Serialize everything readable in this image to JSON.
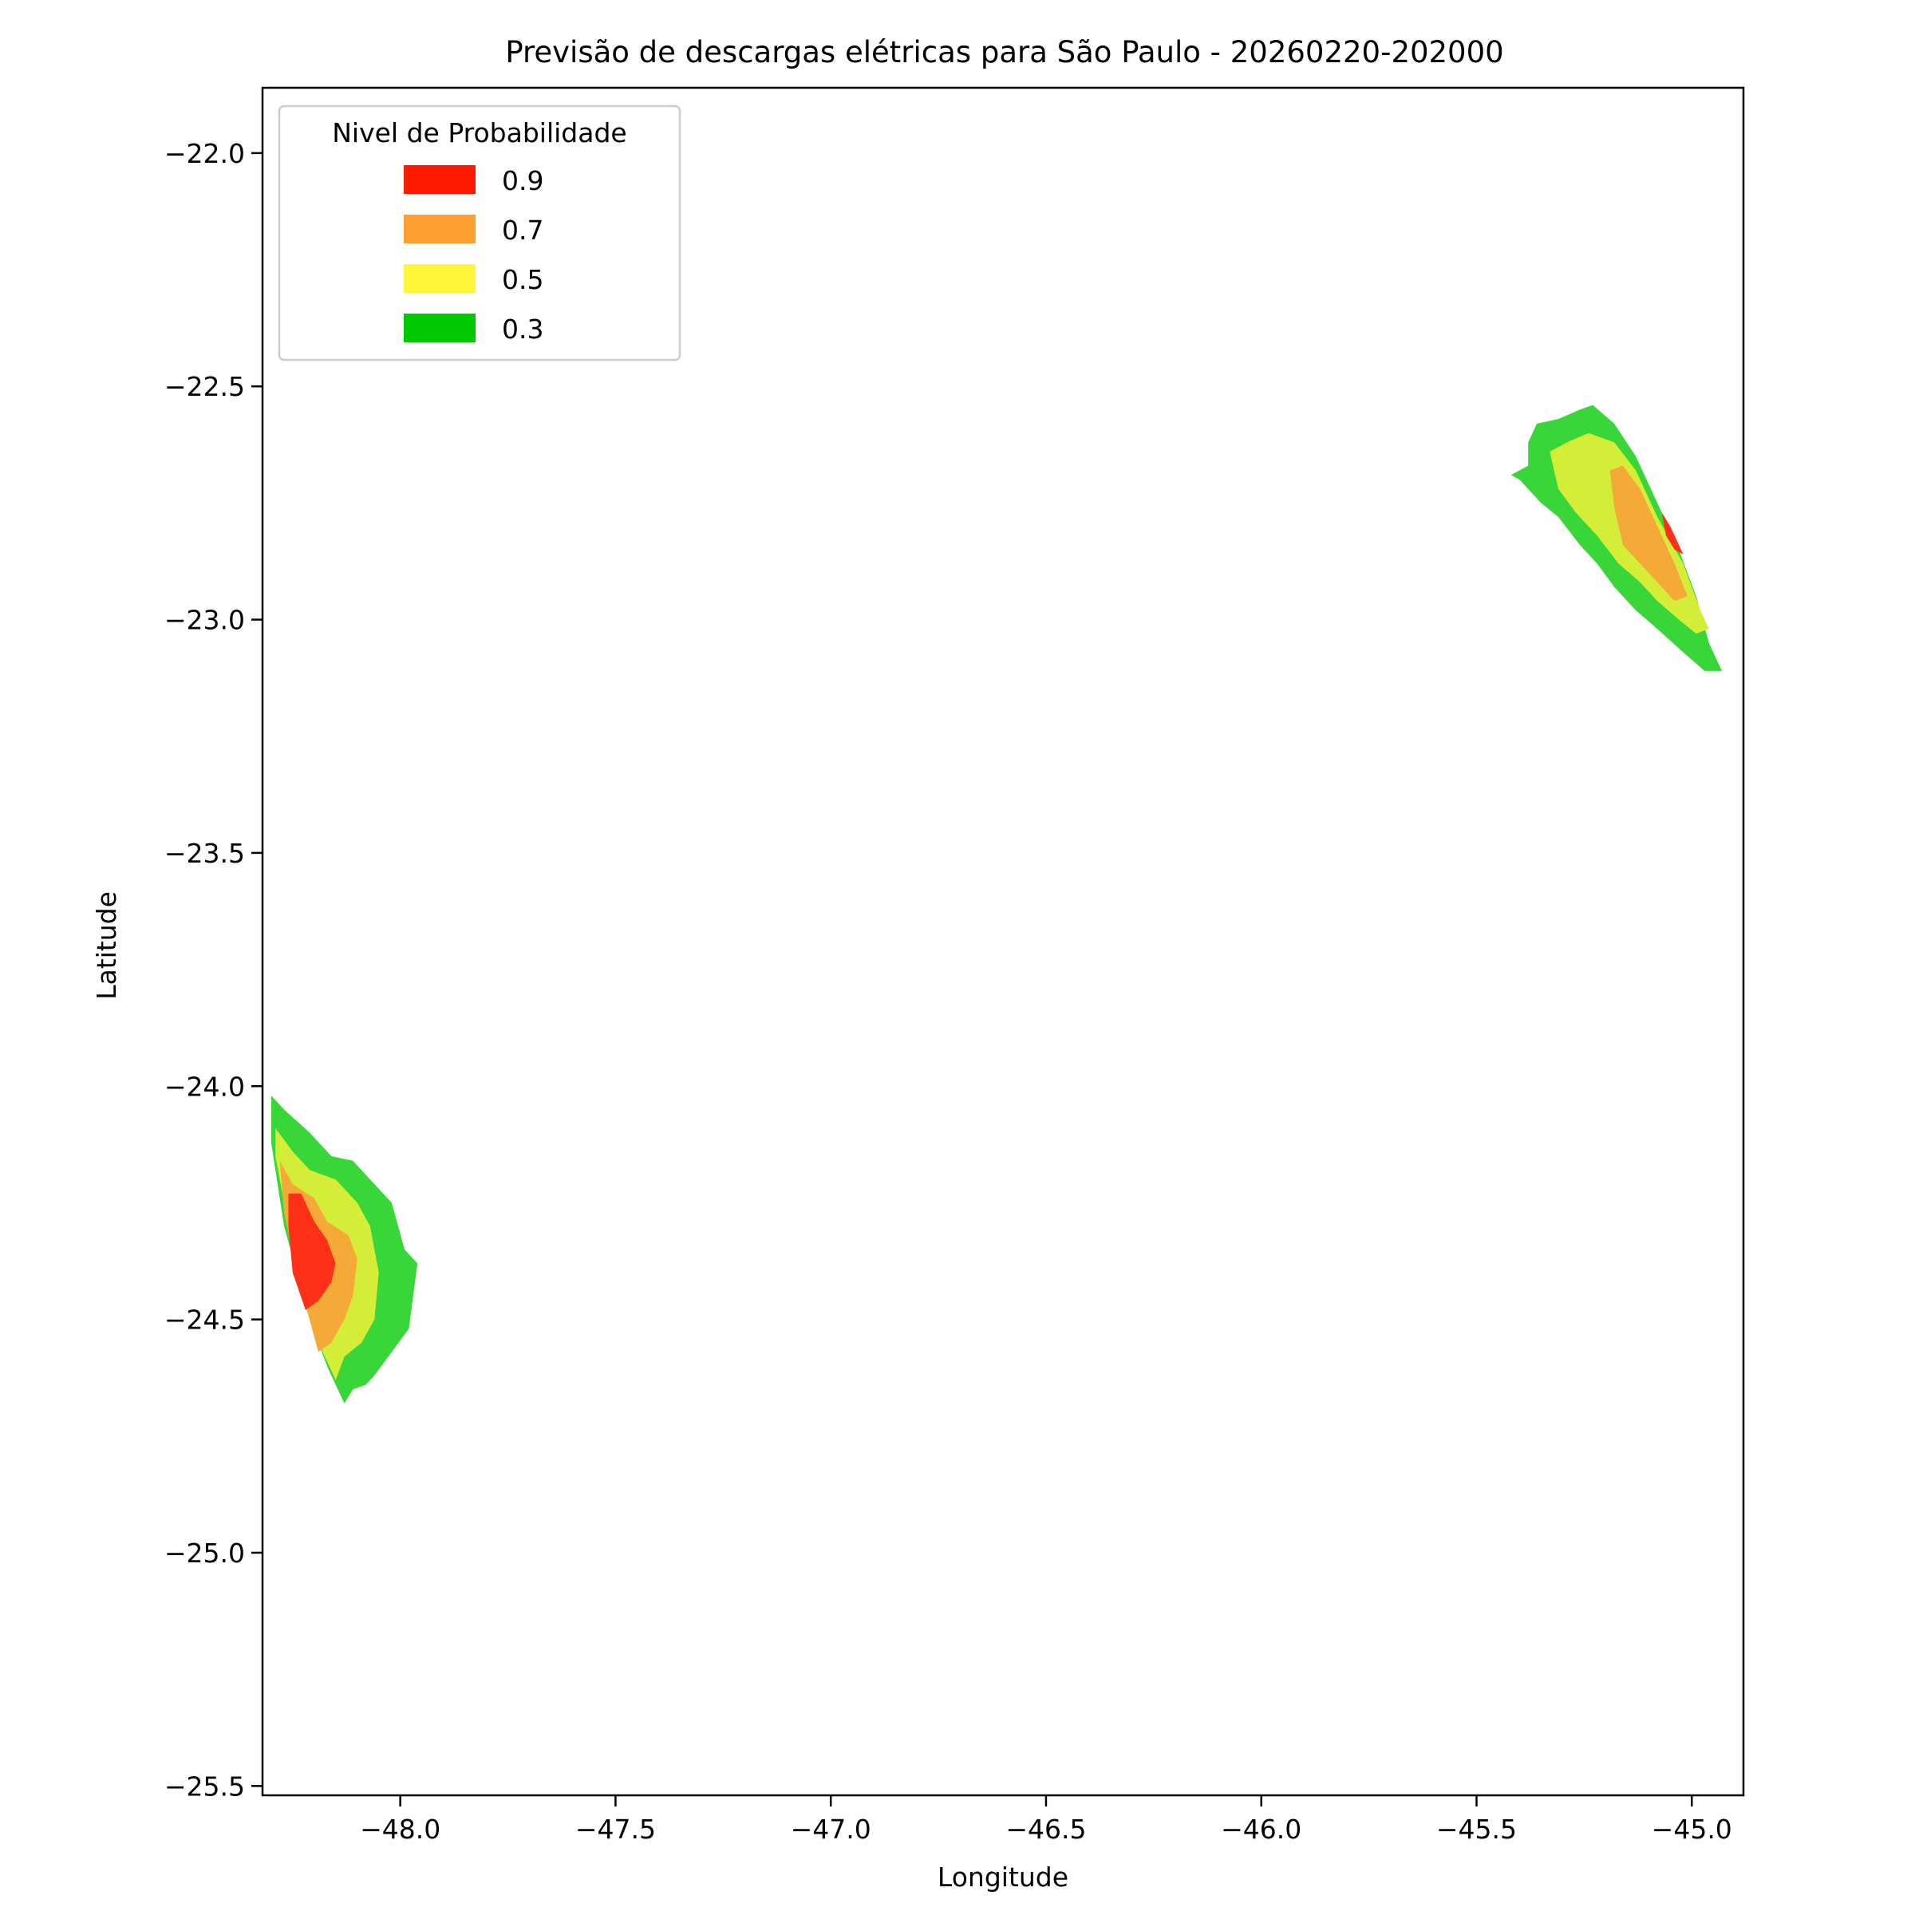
{
  "chart_data": {
    "type": "contourf",
    "title": "Previsão de descargas elétricas para São Paulo - 20260220-202000",
    "xlabel": "Longitude",
    "ylabel": "Latitude",
    "xlim": [
      -48.32,
      -44.88
    ],
    "ylim": [
      -25.52,
      -21.86
    ],
    "xticks": [
      -48.0,
      -47.5,
      -47.0,
      -46.5,
      -46.0,
      -45.5,
      -45.0
    ],
    "xtick_labels": [
      "−48.0",
      "−47.5",
      "−47.0",
      "−46.5",
      "−46.0",
      "−45.5",
      "−45.0"
    ],
    "yticks": [
      -22.0,
      -22.5,
      -23.0,
      -23.5,
      -24.0,
      -24.5,
      -25.0,
      -25.5
    ],
    "ytick_labels": [
      "−22.0",
      "−22.5",
      "−23.0",
      "−23.5",
      "−24.0",
      "−24.5",
      "−25.0",
      "−25.5"
    ],
    "grid": false,
    "legend": {
      "title": "Nivel de Probabilidade",
      "placement": "upper left",
      "entries": [
        {
          "label": "0.9",
          "color": "#ff1a00"
        },
        {
          "label": "0.7",
          "color": "#ff9f30"
        },
        {
          "label": "0.5",
          "color": "#fff53a"
        },
        {
          "label": "0.3",
          "color": "#00c800"
        }
      ]
    },
    "levels": [
      {
        "level": 0.3,
        "fill": "#38d638"
      },
      {
        "level": 0.5,
        "fill": "#d4ee38"
      },
      {
        "level": 0.7,
        "fill": "#f5aa38"
      },
      {
        "level": 0.9,
        "fill": "#ff3018"
      }
    ],
    "regions": [
      {
        "name": "southwest",
        "contours": [
          {
            "level": 0.3,
            "polygon": [
              [
                -48.3,
                -24.02
              ],
              [
                -48.27,
                -24.05
              ],
              [
                -48.21,
                -24.1
              ],
              [
                -48.16,
                -24.15
              ],
              [
                -48.11,
                -24.16
              ],
              [
                -48.07,
                -24.2
              ],
              [
                -48.02,
                -24.25
              ],
              [
                -47.99,
                -24.35
              ],
              [
                -47.96,
                -24.38
              ],
              [
                -47.97,
                -24.45
              ],
              [
                -47.98,
                -24.52
              ],
              [
                -48.02,
                -24.57
              ],
              [
                -48.06,
                -24.62
              ],
              [
                -48.08,
                -24.64
              ],
              [
                -48.11,
                -24.65
              ],
              [
                -48.13,
                -24.68
              ],
              [
                -48.17,
                -24.6
              ],
              [
                -48.21,
                -24.5
              ],
              [
                -48.24,
                -24.4
              ],
              [
                -48.27,
                -24.3
              ],
              [
                -48.3,
                -24.12
              ]
            ]
          },
          {
            "level": 0.5,
            "polygon": [
              [
                -48.29,
                -24.09
              ],
              [
                -48.25,
                -24.14
              ],
              [
                -48.21,
                -24.18
              ],
              [
                -48.15,
                -24.2
              ],
              [
                -48.1,
                -24.25
              ],
              [
                -48.07,
                -24.3
              ],
              [
                -48.05,
                -24.4
              ],
              [
                -48.06,
                -24.5
              ],
              [
                -48.09,
                -24.55
              ],
              [
                -48.13,
                -24.58
              ],
              [
                -48.15,
                -24.63
              ],
              [
                -48.18,
                -24.57
              ],
              [
                -48.2,
                -24.5
              ],
              [
                -48.24,
                -24.4
              ],
              [
                -48.26,
                -24.3
              ],
              [
                -48.29,
                -24.15
              ]
            ]
          },
          {
            "level": 0.7,
            "polygon": [
              [
                -48.28,
                -24.16
              ],
              [
                -48.25,
                -24.21
              ],
              [
                -48.2,
                -24.24
              ],
              [
                -48.17,
                -24.29
              ],
              [
                -48.12,
                -24.32
              ],
              [
                -48.1,
                -24.37
              ],
              [
                -48.11,
                -24.45
              ],
              [
                -48.13,
                -24.5
              ],
              [
                -48.16,
                -24.55
              ],
              [
                -48.19,
                -24.57
              ],
              [
                -48.22,
                -24.47
              ],
              [
                -48.25,
                -24.36
              ],
              [
                -48.27,
                -24.27
              ]
            ]
          },
          {
            "level": 0.9,
            "polygon": [
              [
                -48.26,
                -24.23
              ],
              [
                -48.23,
                -24.23
              ],
              [
                -48.2,
                -24.29
              ],
              [
                -48.17,
                -24.33
              ],
              [
                -48.15,
                -24.38
              ],
              [
                -48.16,
                -24.42
              ],
              [
                -48.19,
                -24.46
              ],
              [
                -48.22,
                -24.48
              ],
              [
                -48.25,
                -24.4
              ],
              [
                -48.26,
                -24.3
              ]
            ]
          }
        ]
      },
      {
        "name": "northeast",
        "contours": [
          {
            "level": 0.3,
            "polygon": [
              [
                -45.38,
                -22.62
              ],
              [
                -45.36,
                -22.58
              ],
              [
                -45.31,
                -22.57
              ],
              [
                -45.26,
                -22.55
              ],
              [
                -45.23,
                -22.54
              ],
              [
                -45.18,
                -22.58
              ],
              [
                -45.13,
                -22.65
              ],
              [
                -45.08,
                -22.75
              ],
              [
                -45.03,
                -22.85
              ],
              [
                -44.99,
                -22.95
              ],
              [
                -44.96,
                -23.05
              ],
              [
                -44.93,
                -23.11
              ],
              [
                -44.97,
                -23.11
              ],
              [
                -45.02,
                -23.07
              ],
              [
                -45.08,
                -23.02
              ],
              [
                -45.13,
                -22.98
              ],
              [
                -45.18,
                -22.93
              ],
              [
                -45.22,
                -22.88
              ],
              [
                -45.26,
                -22.84
              ],
              [
                -45.31,
                -22.78
              ],
              [
                -45.35,
                -22.75
              ],
              [
                -45.4,
                -22.7
              ],
              [
                -45.42,
                -22.69
              ],
              [
                -45.38,
                -22.67
              ]
            ]
          },
          {
            "level": 0.5,
            "polygon": [
              [
                -45.33,
                -22.64
              ],
              [
                -45.29,
                -22.62
              ],
              [
                -45.24,
                -22.6
              ],
              [
                -45.18,
                -22.62
              ],
              [
                -45.13,
                -22.68
              ],
              [
                -45.08,
                -22.78
              ],
              [
                -45.02,
                -22.88
              ],
              [
                -44.98,
                -22.98
              ],
              [
                -44.96,
                -23.02
              ],
              [
                -44.99,
                -23.03
              ],
              [
                -45.03,
                -23.0
              ],
              [
                -45.08,
                -22.96
              ],
              [
                -45.12,
                -22.92
              ],
              [
                -45.17,
                -22.88
              ],
              [
                -45.22,
                -22.82
              ],
              [
                -45.27,
                -22.77
              ],
              [
                -45.31,
                -22.72
              ]
            ]
          },
          {
            "level": 0.7,
            "polygon": [
              [
                -45.19,
                -22.68
              ],
              [
                -45.16,
                -22.67
              ],
              [
                -45.12,
                -22.72
              ],
              [
                -45.08,
                -22.8
              ],
              [
                -45.04,
                -22.88
              ],
              [
                -45.01,
                -22.95
              ],
              [
                -45.04,
                -22.96
              ],
              [
                -45.08,
                -22.92
              ],
              [
                -45.12,
                -22.88
              ],
              [
                -45.16,
                -22.84
              ],
              [
                -45.18,
                -22.76
              ]
            ]
          },
          {
            "level": 0.9,
            "polygon": [
              [
                -45.07,
                -22.77
              ],
              [
                -45.05,
                -22.8
              ],
              [
                -45.03,
                -22.84
              ],
              [
                -45.02,
                -22.86
              ],
              [
                -45.04,
                -22.85
              ],
              [
                -45.06,
                -22.82
              ]
            ]
          }
        ]
      }
    ]
  }
}
